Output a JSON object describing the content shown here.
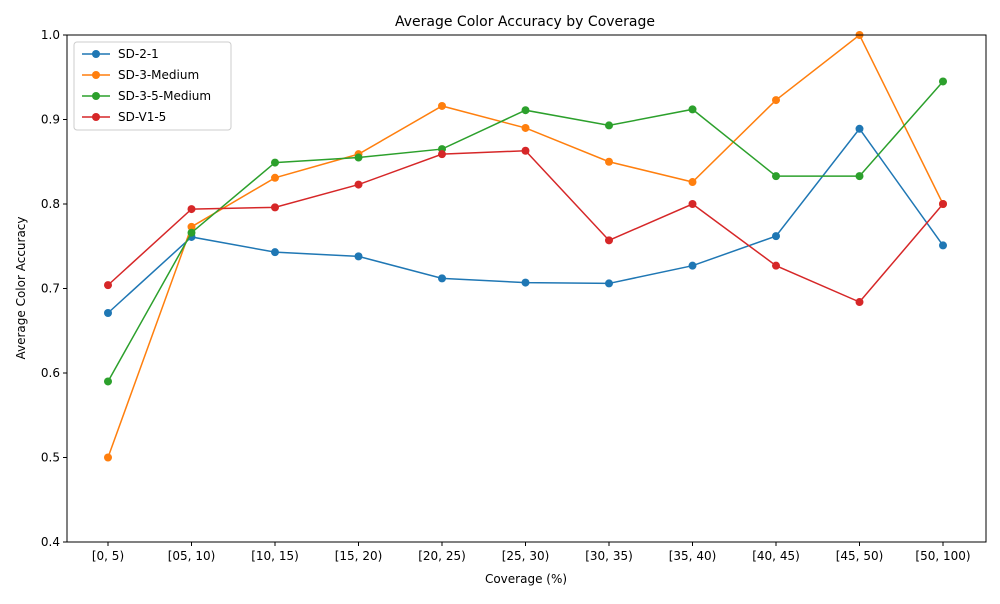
{
  "chart_data": {
    "type": "line",
    "title": "Average Color Accuracy by Coverage",
    "xlabel": "Coverage (%)",
    "ylabel": "Average Color Accuracy",
    "ylim": [
      0.4,
      1.0
    ],
    "yticks": [
      "0.4",
      "0.5",
      "0.6",
      "0.7",
      "0.8",
      "0.9",
      "1.0"
    ],
    "grid": false,
    "legend_position": "top-left",
    "categories": [
      "[0, 5)",
      "[05, 10)",
      "[10, 15)",
      "[15, 20)",
      "[20, 25)",
      "[25, 30)",
      "[30, 35)",
      "[35, 40)",
      "[40, 45)",
      "[45, 50)",
      "[50, 100)"
    ],
    "series": [
      {
        "name": "SD-2-1",
        "color": "#1f77b4",
        "values": [
          0.671,
          0.761,
          0.743,
          0.738,
          0.712,
          0.707,
          0.706,
          0.727,
          0.762,
          0.889,
          0.751
        ]
      },
      {
        "name": "SD-3-Medium",
        "color": "#ff7f0e",
        "values": [
          0.5,
          0.773,
          0.831,
          0.859,
          0.916,
          0.89,
          0.85,
          0.826,
          0.923,
          1.0,
          0.8
        ]
      },
      {
        "name": "SD-3-5-Medium",
        "color": "#2ca02c",
        "values": [
          0.59,
          0.766,
          0.849,
          0.855,
          0.865,
          0.911,
          0.893,
          0.912,
          0.833,
          0.833,
          0.945
        ]
      },
      {
        "name": "SD-V1-5",
        "color": "#d62728",
        "values": [
          0.704,
          0.794,
          0.796,
          0.823,
          0.859,
          0.863,
          0.757,
          0.8,
          0.727,
          0.684,
          0.8
        ]
      }
    ]
  }
}
